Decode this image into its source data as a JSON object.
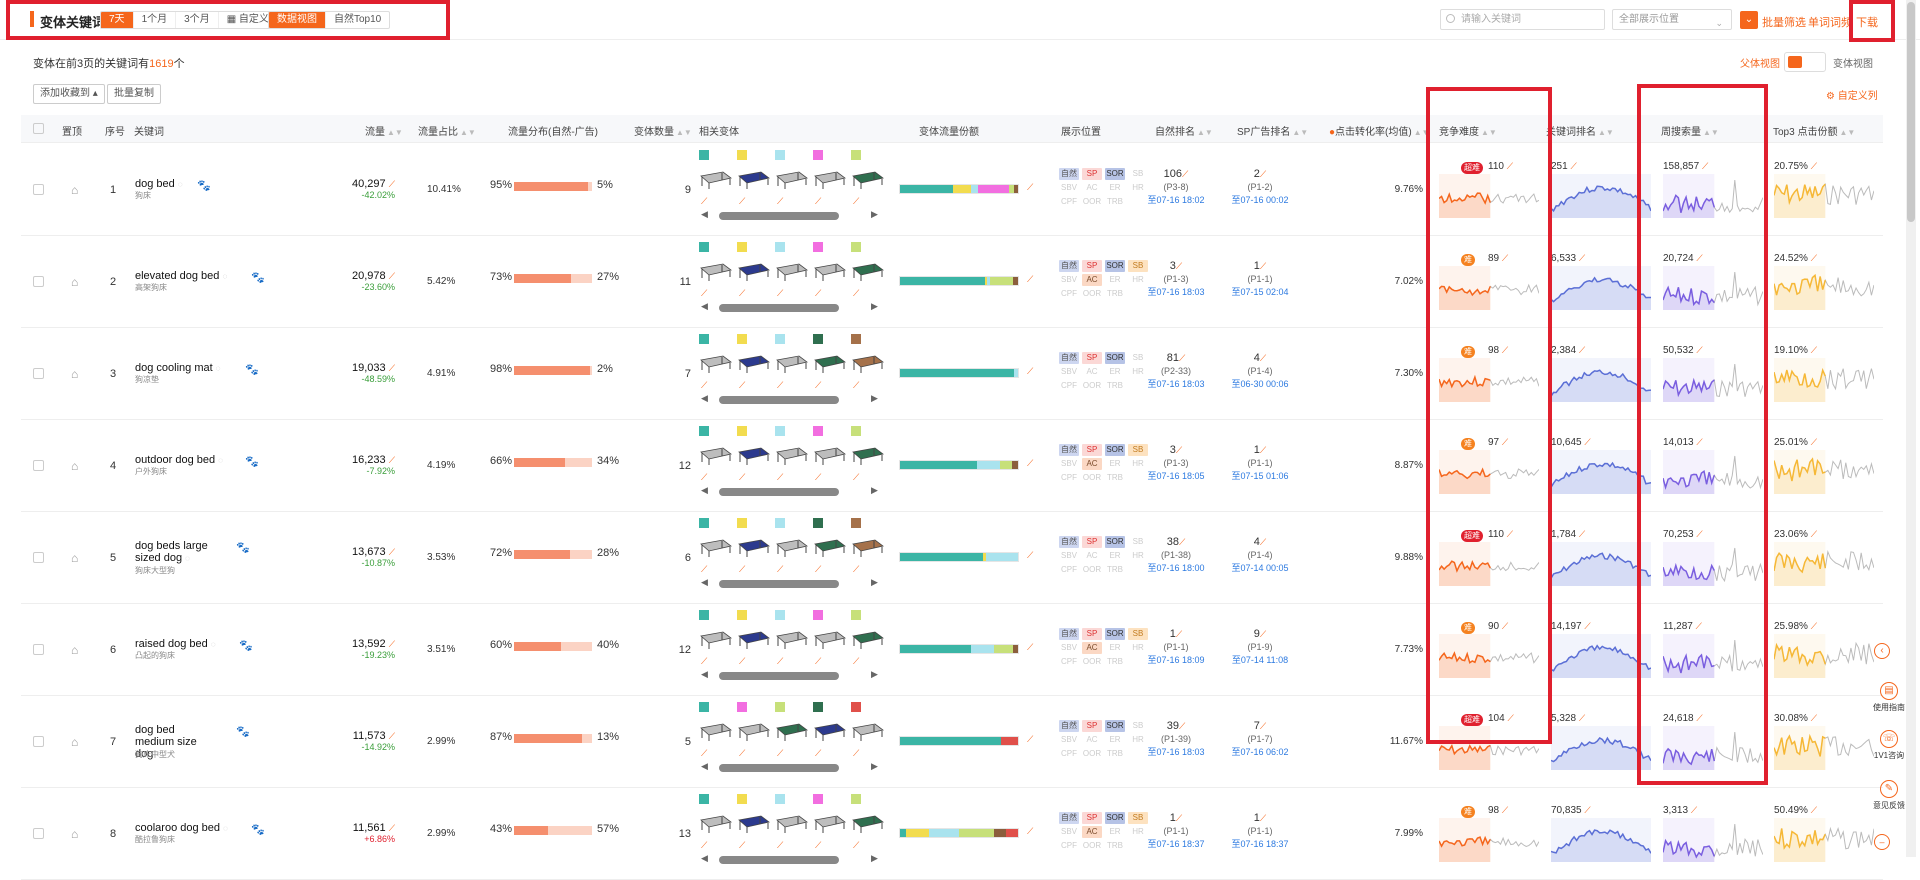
{
  "header": {
    "title": "变体关键词",
    "periods": [
      "7天",
      "1个月",
      "3个月",
      "自定义"
    ],
    "views": [
      "数据视图",
      "自然Top10"
    ],
    "search_placeholder": "请输入关键词",
    "position_select": "全部展示位置",
    "batch_filter": "批量筛选",
    "word_root": "单词词频",
    "download": "下载"
  },
  "summary": {
    "prefix": "变体在前3页的关键词有",
    "count": "1619",
    "suffix": "个"
  },
  "toolbar": {
    "add_collection": "添加收藏到",
    "batch_copy": "批量复制",
    "parent_view": "父体视图",
    "variant_view": "变体视图",
    "custom_columns": "自定义列"
  },
  "columns": {
    "pin": "置顶",
    "index": "序号",
    "keyword": "关键词",
    "traffic": "流量",
    "traffic_share": "流量占比",
    "distribution": "流量分布(自然-广告)",
    "variant_count": "变体数量",
    "related_variants": "相关变体",
    "variant_share": "变体流量份额",
    "display_position": "展示位置",
    "organic_rank": "自然排名",
    "sp_rank": "SP广告排名",
    "cvr": "点击转化率(均值)",
    "difficulty": "竞争难度",
    "kw_rank": "关键词排名",
    "search_volume": "周搜索量",
    "top3": "Top3 点击份额"
  },
  "badge_labels": {
    "row1": [
      "自然",
      "SP",
      "SOR",
      "SB"
    ],
    "row2": [
      "SBV",
      "AC",
      "ER",
      "HR"
    ],
    "row3": [
      "CPF",
      "OOR",
      "TRB"
    ]
  },
  "rows": [
    {
      "idx": "1",
      "kw": "dog bed",
      "sub": "狗床",
      "traffic": "40,297",
      "chg": "-42.02%",
      "chg_dir": "down",
      "share": "10.41%",
      "nat": "95%",
      "ad": "5%",
      "nat_frac": 0.95,
      "vcount": "9",
      "swatches": [
        "#3bb5a5",
        "#f2dc4f",
        "#a9e3ee",
        "#f26ee0",
        "#c7e07a"
      ],
      "beds": [
        "#bdbdbd",
        "#2c3a8e",
        "#bdbdbd",
        "#bdbdbd",
        "#2f6f4f"
      ],
      "stack": [
        {
          "c": "#3bb5a5",
          "w": 0.45
        },
        {
          "c": "#f2dc4f",
          "w": 0.15
        },
        {
          "c": "#a9e3ee",
          "w": 0.06
        },
        {
          "c": "#f26ee0",
          "w": 0.26
        },
        {
          "c": "#c7e07a",
          "w": 0.05
        },
        {
          "c": "#8b5e3c",
          "w": 0.03
        }
      ],
      "b_sb": false,
      "b_ac": false,
      "org": "106",
      "org_sub": "(P3-8)",
      "org_dt": "至07-16 18:02",
      "sp": "2",
      "sp_sub": "(P1-2)",
      "sp_dt": "至07-16 00:02",
      "cvr": "9.76%",
      "diff_label": "超难",
      "diff_color": "#e0202e",
      "diff": "110",
      "kwrank": "251",
      "vol": "158,857",
      "top3": "20.75%"
    },
    {
      "idx": "2",
      "kw": "elevated dog bed",
      "sub": "高架狗床",
      "traffic": "20,978",
      "chg": "-23.60%",
      "chg_dir": "down",
      "share": "5.42%",
      "nat": "73%",
      "ad": "27%",
      "nat_frac": 0.73,
      "vcount": "11",
      "swatches": [
        "#3bb5a5",
        "#f2dc4f",
        "#a9e3ee",
        "#f26ee0",
        "#c7e07a"
      ],
      "beds": [
        "#bdbdbd",
        "#2c3a8e",
        "#bdbdbd",
        "#bdbdbd",
        "#2f6f4f"
      ],
      "stack": [
        {
          "c": "#3bb5a5",
          "w": 0.72
        },
        {
          "c": "#f2dc4f",
          "w": 0.02
        },
        {
          "c": "#a9e3ee",
          "w": 0.02
        },
        {
          "c": "#c7e07a",
          "w": 0.2
        },
        {
          "c": "#8b5e3c",
          "w": 0.04
        }
      ],
      "b_sb": true,
      "b_ac": true,
      "org": "3",
      "org_sub": "(P1-3)",
      "org_dt": "至07-16 18:03",
      "sp": "1",
      "sp_sub": "(P1-1)",
      "sp_dt": "至07-15 02:04",
      "cvr": "7.02%",
      "diff_label": "难",
      "diff_color": "#f58220",
      "diff": "89",
      "kwrank": "6,533",
      "vol": "20,724",
      "top3": "24.52%"
    },
    {
      "idx": "3",
      "kw": "dog cooling mat",
      "sub": "狗凉垫",
      "traffic": "19,033",
      "chg": "-48.59%",
      "chg_dir": "down",
      "share": "4.91%",
      "nat": "98%",
      "ad": "2%",
      "nat_frac": 0.98,
      "vcount": "7",
      "swatches": [
        "#3bb5a5",
        "#f2dc4f",
        "#a9e3ee",
        "#2f6f4f",
        "#a5714a"
      ],
      "beds": [
        "#bdbdbd",
        "#2c3a8e",
        "#bdbdbd",
        "#2f6f4f",
        "#a5714a"
      ],
      "stack": [
        {
          "c": "#3bb5a5",
          "w": 0.97
        },
        {
          "c": "#a9e3ee",
          "w": 0.03
        }
      ],
      "b_sb": false,
      "b_ac": false,
      "org": "81",
      "org_sub": "(P2-33)",
      "org_dt": "至07-16 18:03",
      "sp": "4",
      "sp_sub": "(P1-4)",
      "sp_dt": "至06-30 00:06",
      "cvr": "7.30%",
      "diff_label": "难",
      "diff_color": "#f58220",
      "diff": "98",
      "kwrank": "2,384",
      "vol": "50,532",
      "top3": "19.10%"
    },
    {
      "idx": "4",
      "kw": "outdoor dog bed",
      "sub": "户外狗床",
      "traffic": "16,233",
      "chg": "-7.92%",
      "chg_dir": "down",
      "share": "4.19%",
      "nat": "66%",
      "ad": "34%",
      "nat_frac": 0.66,
      "vcount": "12",
      "swatches": [
        "#3bb5a5",
        "#f2dc4f",
        "#a9e3ee",
        "#f26ee0",
        "#c7e07a"
      ],
      "beds": [
        "#bdbdbd",
        "#2c3a8e",
        "#bdbdbd",
        "#bdbdbd",
        "#2f6f4f"
      ],
      "stack": [
        {
          "c": "#3bb5a5",
          "w": 0.65
        },
        {
          "c": "#a9e3ee",
          "w": 0.2
        },
        {
          "c": "#c7e07a",
          "w": 0.1
        },
        {
          "c": "#8b5e3c",
          "w": 0.05
        }
      ],
      "b_sb": true,
      "b_ac": true,
      "org": "3",
      "org_sub": "(P1-3)",
      "org_dt": "至07-16 18:05",
      "sp": "1",
      "sp_sub": "(P1-1)",
      "sp_dt": "至07-15 01:06",
      "cvr": "8.87%",
      "diff_label": "难",
      "diff_color": "#f58220",
      "diff": "97",
      "kwrank": "10,645",
      "vol": "14,013",
      "top3": "25.01%"
    },
    {
      "idx": "5",
      "kw": "dog beds large sized dog",
      "sub": "狗床大型狗",
      "traffic": "13,673",
      "chg": "-10.87%",
      "chg_dir": "down",
      "share": "3.53%",
      "nat": "72%",
      "ad": "28%",
      "nat_frac": 0.72,
      "vcount": "6",
      "swatches": [
        "#3bb5a5",
        "#f2dc4f",
        "#a9e3ee",
        "#2f6f4f",
        "#a5714a"
      ],
      "beds": [
        "#bdbdbd",
        "#2c3a8e",
        "#bdbdbd",
        "#2f6f4f",
        "#a5714a"
      ],
      "stack": [
        {
          "c": "#3bb5a5",
          "w": 0.7
        },
        {
          "c": "#f2dc4f",
          "w": 0.03
        },
        {
          "c": "#a9e3ee",
          "w": 0.27
        }
      ],
      "b_sb": false,
      "b_ac": false,
      "org": "38",
      "org_sub": "(P1-38)",
      "org_dt": "至07-16 18:00",
      "sp": "4",
      "sp_sub": "(P1-4)",
      "sp_dt": "至07-14 00:05",
      "cvr": "9.88%",
      "diff_label": "超难",
      "diff_color": "#e0202e",
      "diff": "110",
      "kwrank": "1,784",
      "vol": "70,253",
      "top3": "23.06%"
    },
    {
      "idx": "6",
      "kw": "raised dog bed",
      "sub": "凸起的狗床",
      "traffic": "13,592",
      "chg": "-19.23%",
      "chg_dir": "down",
      "share": "3.51%",
      "nat": "60%",
      "ad": "40%",
      "nat_frac": 0.6,
      "vcount": "12",
      "swatches": [
        "#3bb5a5",
        "#f2dc4f",
        "#a9e3ee",
        "#f26ee0",
        "#c7e07a"
      ],
      "beds": [
        "#bdbdbd",
        "#2c3a8e",
        "#bdbdbd",
        "#bdbdbd",
        "#2f6f4f"
      ],
      "stack": [
        {
          "c": "#3bb5a5",
          "w": 0.6
        },
        {
          "c": "#a9e3ee",
          "w": 0.2
        },
        {
          "c": "#c7e07a",
          "w": 0.16
        },
        {
          "c": "#8b5e3c",
          "w": 0.04
        }
      ],
      "b_sb": true,
      "b_ac": true,
      "org": "1",
      "org_sub": "(P1-1)",
      "org_dt": "至07-16 18:09",
      "sp": "9",
      "sp_sub": "(P1-9)",
      "sp_dt": "至07-14 11:08",
      "cvr": "7.73%",
      "diff_label": "难",
      "diff_color": "#f58220",
      "diff": "90",
      "kwrank": "14,197",
      "vol": "11,287",
      "top3": "25.98%"
    },
    {
      "idx": "7",
      "kw": "dog bed medium size dog",
      "sub": "狗床中型犬",
      "traffic": "11,573",
      "chg": "-14.92%",
      "chg_dir": "down",
      "share": "2.99%",
      "nat": "87%",
      "ad": "13%",
      "nat_frac": 0.87,
      "vcount": "5",
      "swatches": [
        "#3bb5a5",
        "#f26ee0",
        "#c7e07a",
        "#2f6f4f",
        "#e0504a"
      ],
      "beds": [
        "#bdbdbd",
        "#bdbdbd",
        "#2f6f4f",
        "#2c3a8e",
        "#bdbdbd"
      ],
      "stack": [
        {
          "c": "#3bb5a5",
          "w": 0.86
        },
        {
          "c": "#e0504a",
          "w": 0.14
        }
      ],
      "b_sb": false,
      "b_ac": false,
      "org": "39",
      "org_sub": "(P1-39)",
      "org_dt": "至07-16 18:03",
      "sp": "7",
      "sp_sub": "(P1-7)",
      "sp_dt": "至07-16 06:02",
      "cvr": "11.67%",
      "diff_label": "超难",
      "diff_color": "#e0202e",
      "diff": "104",
      "kwrank": "5,328",
      "vol": "24,618",
      "top3": "30.08%"
    },
    {
      "idx": "8",
      "kw": "coolaroo dog bed",
      "sub": "酷拉鲁狗床",
      "traffic": "11,561",
      "chg": "+6.86%",
      "chg_dir": "up",
      "share": "2.99%",
      "nat": "43%",
      "ad": "57%",
      "nat_frac": 0.43,
      "vcount": "13",
      "swatches": [
        "#3bb5a5",
        "#f2dc4f",
        "#a9e3ee",
        "#f26ee0",
        "#c7e07a"
      ],
      "beds": [
        "#bdbdbd",
        "#2c3a8e",
        "#bdbdbd",
        "#bdbdbd",
        "#2f6f4f"
      ],
      "stack": [
        {
          "c": "#3bb5a5",
          "w": 0.05
        },
        {
          "c": "#f2dc4f",
          "w": 0.2
        },
        {
          "c": "#a9e3ee",
          "w": 0.25
        },
        {
          "c": "#c7e07a",
          "w": 0.3
        },
        {
          "c": "#8b5e3c",
          "w": 0.1
        },
        {
          "c": "#e0504a",
          "w": 0.1
        }
      ],
      "b_sb": true,
      "b_ac": true,
      "org": "1",
      "org_sub": "(P1-1)",
      "org_dt": "至07-16 18:37",
      "sp": "1",
      "sp_sub": "(P1-1)",
      "sp_dt": "至07-16 18:37",
      "cvr": "7.99%",
      "diff_label": "难",
      "diff_color": "#f58220",
      "diff": "98",
      "kwrank": "70,835",
      "vol": "3,313",
      "top3": "50.49%"
    }
  ],
  "side_tools": [
    "使用指南",
    "1V1咨询",
    "意见反馈"
  ],
  "colors": {
    "accent": "#f5661c",
    "highlight_box": "#e0202e"
  }
}
